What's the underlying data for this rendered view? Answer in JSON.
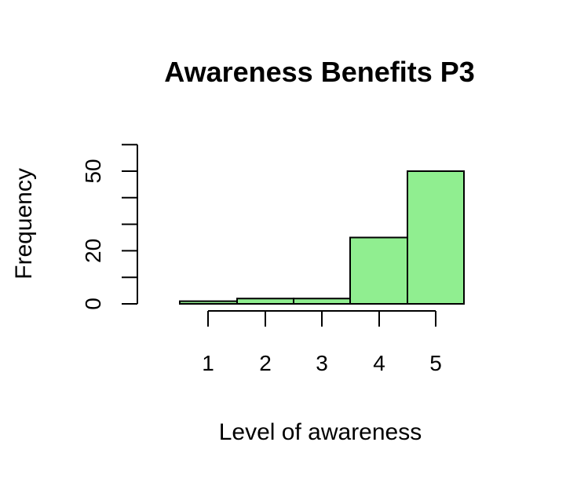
{
  "chart_data": {
    "type": "bar",
    "title": "Awareness Benefits P3",
    "xlabel": "Level of awareness",
    "ylabel": "Frequency",
    "categories": [
      "1",
      "2",
      "3",
      "4",
      "5"
    ],
    "values": [
      1,
      2,
      2,
      25,
      50
    ],
    "ylim": [
      0,
      60
    ],
    "y_minor_ticks": [
      0,
      10,
      20,
      30,
      40,
      50,
      60
    ],
    "y_tick_labels": [
      "0",
      "20",
      "50"
    ],
    "grid": false,
    "legend": "none",
    "bar_color": "#90ee90",
    "outline_color": "#000000"
  }
}
